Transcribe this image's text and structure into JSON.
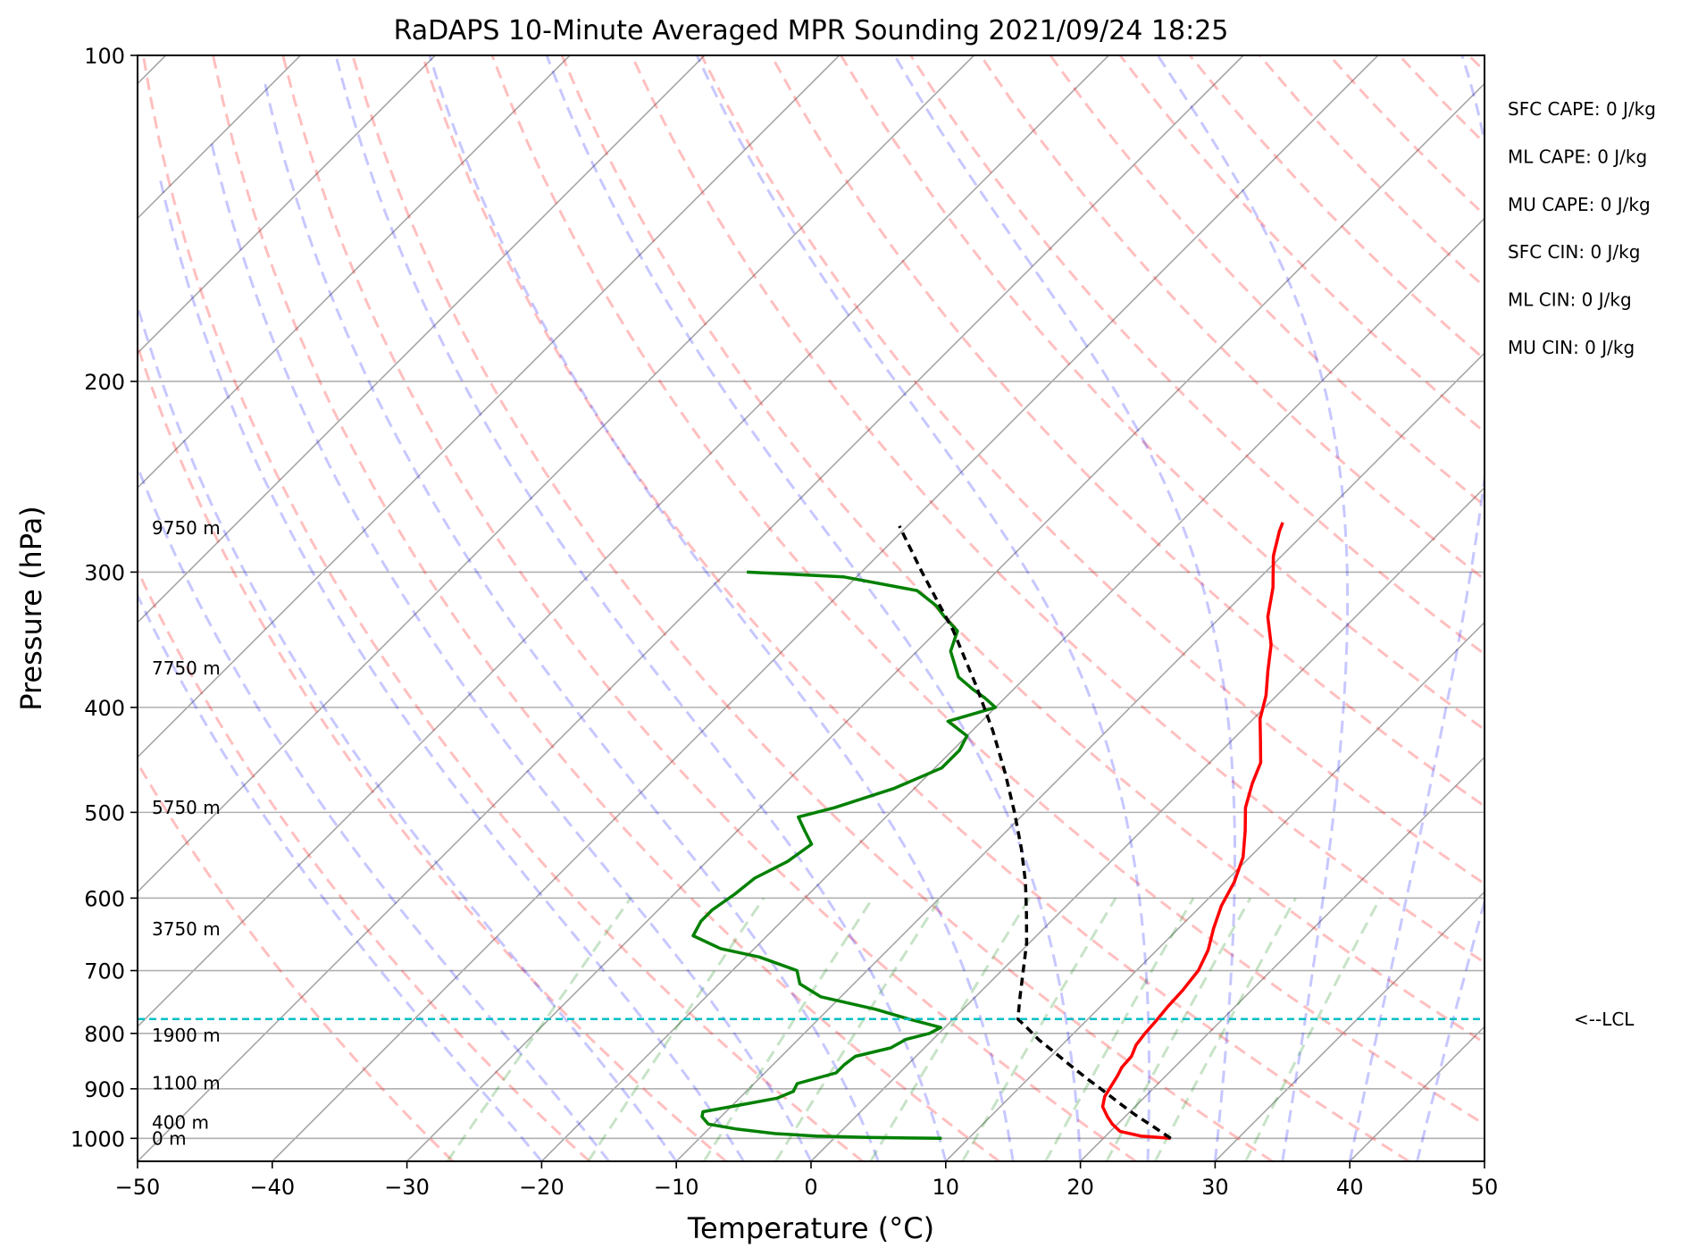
{
  "chart_data": {
    "type": "line",
    "title": "RaDAPS 10-Minute Averaged MPR Sounding 2021/09/24 18:25",
    "xlabel": "Temperature (°C)",
    "ylabel": "Pressure (hPa)",
    "xlim": [
      -50,
      50
    ],
    "ylim": [
      1050,
      100
    ],
    "y_scale": "log",
    "x_ticks": [
      "−50",
      "−40",
      "−30",
      "−20",
      "−10",
      "0",
      "10",
      "20",
      "30",
      "40",
      "50"
    ],
    "y_ticks": [
      "100",
      "200",
      "300",
      "400",
      "500",
      "600",
      "700",
      "800",
      "900",
      "1000"
    ],
    "grid": true,
    "height_labels": [
      {
        "p": 1000,
        "text": "0 m"
      },
      {
        "p": 967,
        "text": "400 m"
      },
      {
        "p": 889,
        "text": "1100 m"
      },
      {
        "p": 803,
        "text": "1900 m"
      },
      {
        "p": 641,
        "text": "3750 m"
      },
      {
        "p": 495,
        "text": "5750 m"
      },
      {
        "p": 368,
        "text": "7750 m"
      },
      {
        "p": 273,
        "text": "9750 m"
      }
    ],
    "lcl": {
      "p": 776,
      "label": "<--LCL"
    },
    "indices": [
      "SFC CAPE: 0 J/kg",
      "ML CAPE: 0 J/kg",
      "MU CAPE: 0 J/kg",
      "SFC CIN: 0 J/kg",
      "ML CIN: 0 J/kg",
      "MU CIN: 0 J/kg"
    ],
    "series": [
      {
        "key": "temperature",
        "color": "#ff0000",
        "points": [
          [
            1000,
            25.0
          ],
          [
            995,
            22.6
          ],
          [
            985,
            20.7
          ],
          [
            970,
            19.6
          ],
          [
            955,
            18.7
          ],
          [
            935,
            17.6
          ],
          [
            915,
            17.0
          ],
          [
            895,
            16.7
          ],
          [
            875,
            16.4
          ],
          [
            860,
            16.1
          ],
          [
            840,
            16.0
          ],
          [
            820,
            15.5
          ],
          [
            800,
            15.3
          ],
          [
            780,
            15.2
          ],
          [
            755,
            15.0
          ],
          [
            730,
            14.9
          ],
          [
            700,
            14.6
          ],
          [
            670,
            13.8
          ],
          [
            640,
            12.6
          ],
          [
            610,
            11.5
          ],
          [
            580,
            10.7
          ],
          [
            550,
            9.5
          ],
          [
            520,
            7.7
          ],
          [
            495,
            6.0
          ],
          [
            470,
            4.7
          ],
          [
            450,
            3.8
          ],
          [
            430,
            2.2
          ],
          [
            410,
            0.5
          ],
          [
            390,
            -0.8
          ],
          [
            370,
            -2.5
          ],
          [
            350,
            -4.2
          ],
          [
            330,
            -6.5
          ],
          [
            310,
            -8.3
          ],
          [
            290,
            -10.6
          ],
          [
            275,
            -12.0
          ],
          [
            270,
            -12.4
          ]
        ]
      },
      {
        "key": "dewpoint",
        "color": "#008000",
        "points": [
          [
            1000,
            8.0
          ],
          [
            998,
            2.5
          ],
          [
            995,
            -1.5
          ],
          [
            990,
            -4.7
          ],
          [
            980,
            -8.0
          ],
          [
            970,
            -10.4
          ],
          [
            955,
            -11.4
          ],
          [
            945,
            -11.7
          ],
          [
            930,
            -9.2
          ],
          [
            918,
            -7.2
          ],
          [
            905,
            -6.5
          ],
          [
            890,
            -6.8
          ],
          [
            870,
            -4.7
          ],
          [
            855,
            -4.7
          ],
          [
            840,
            -4.5
          ],
          [
            825,
            -2.5
          ],
          [
            810,
            -2.0
          ],
          [
            800,
            -0.7
          ],
          [
            790,
            -0.3
          ],
          [
            775,
            -3.5
          ],
          [
            760,
            -6.5
          ],
          [
            740,
            -11.5
          ],
          [
            720,
            -14.0
          ],
          [
            700,
            -15.2
          ],
          [
            680,
            -19.0
          ],
          [
            668,
            -22.5
          ],
          [
            650,
            -25.5
          ],
          [
            630,
            -26.0
          ],
          [
            615,
            -26.0
          ],
          [
            595,
            -25.5
          ],
          [
            575,
            -25.2
          ],
          [
            555,
            -24.0
          ],
          [
            535,
            -23.5
          ],
          [
            520,
            -25.0
          ],
          [
            505,
            -26.5
          ],
          [
            495,
            -24.5
          ],
          [
            475,
            -21.5
          ],
          [
            455,
            -19.5
          ],
          [
            438,
            -19.5
          ],
          [
            425,
            -20.0
          ],
          [
            412,
            -22.5
          ],
          [
            400,
            -20.0
          ],
          [
            392,
            -21.5
          ],
          [
            385,
            -23.0
          ],
          [
            375,
            -25.0
          ],
          [
            355,
            -27.5
          ],
          [
            340,
            -28.5
          ],
          [
            330,
            -30.5
          ],
          [
            322,
            -32.0
          ],
          [
            312,
            -34.5
          ],
          [
            303,
            -41.0
          ],
          [
            300,
            -48.5
          ]
        ]
      },
      {
        "key": "parcel_profile",
        "color": "#000000",
        "points": [
          [
            1000,
            25.0
          ],
          [
            976,
            22.9
          ],
          [
            951,
            20.6
          ],
          [
            927,
            18.5
          ],
          [
            903,
            16.4
          ],
          [
            879,
            14.2
          ],
          [
            856,
            12.1
          ],
          [
            833,
            10.0
          ],
          [
            811,
            7.9
          ],
          [
            789,
            6.0
          ],
          [
            776,
            4.8
          ],
          [
            740,
            3.3
          ],
          [
            700,
            1.6
          ],
          [
            660,
            -0.2
          ],
          [
            620,
            -2.4
          ],
          [
            580,
            -4.8
          ],
          [
            540,
            -7.6
          ],
          [
            500,
            -10.8
          ],
          [
            460,
            -14.4
          ],
          [
            420,
            -18.5
          ],
          [
            380,
            -23.3
          ],
          [
            340,
            -28.8
          ],
          [
            300,
            -35.5
          ],
          [
            272,
            -40.6
          ]
        ]
      }
    ]
  }
}
